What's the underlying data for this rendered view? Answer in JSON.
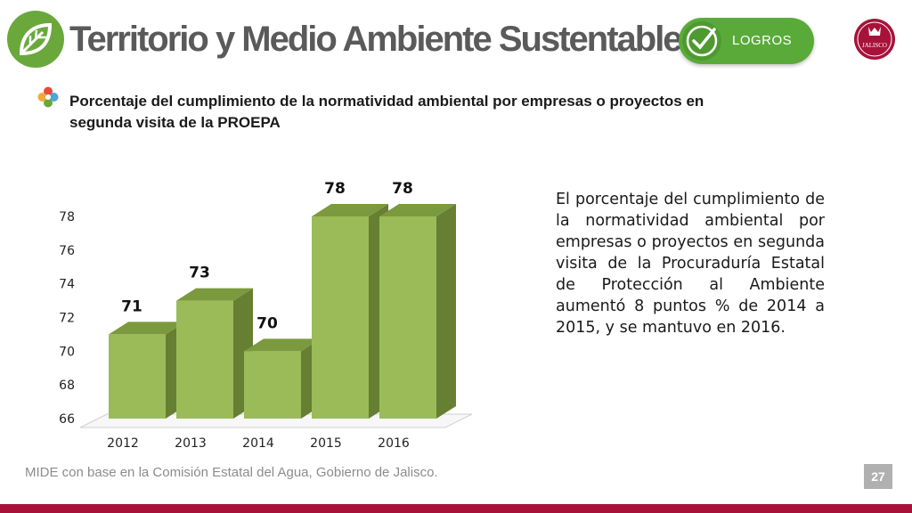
{
  "header": {
    "title": "Territorio y Medio Ambiente Sustentable",
    "badge_label": "LOGROS",
    "seal_text": "JALISCO"
  },
  "subtitle": "Porcentaje del cumplimiento de la normatividad ambiental por empresas o proyectos en segunda visita de la PROEPA",
  "description": "El porcentaje del cumplimiento de la normatividad ambiental por empresas o proyectos en segunda visita de la Procuraduría Estatal de Protección al Ambiente aumentó 8 puntos % de 2014 a 2015, y se mantuvo en 2016.",
  "footer": {
    "source": "MIDE con base en la Comisión Estatal del Agua, Gobierno de Jalisco.",
    "page": "27"
  },
  "colors": {
    "accent_green": "#6aa83c",
    "bar_front": "#9bbb59",
    "bar_top": "#7b9a3e",
    "bar_side": "#667f32",
    "footer_bar": "#a8123a"
  },
  "chart_data": {
    "type": "bar",
    "style": "3d",
    "categories": [
      "2012",
      "2013",
      "2014",
      "2015",
      "2016"
    ],
    "values": [
      71,
      73,
      70,
      78,
      78
    ],
    "data_labels": [
      "71",
      "73",
      "70",
      "78",
      "78"
    ],
    "yticks": [
      "66",
      "68",
      "70",
      "72",
      "74",
      "76",
      "78"
    ],
    "ylim": [
      66,
      78
    ],
    "title": "",
    "xlabel": "",
    "ylabel": "",
    "grid": false,
    "legend": "none"
  }
}
